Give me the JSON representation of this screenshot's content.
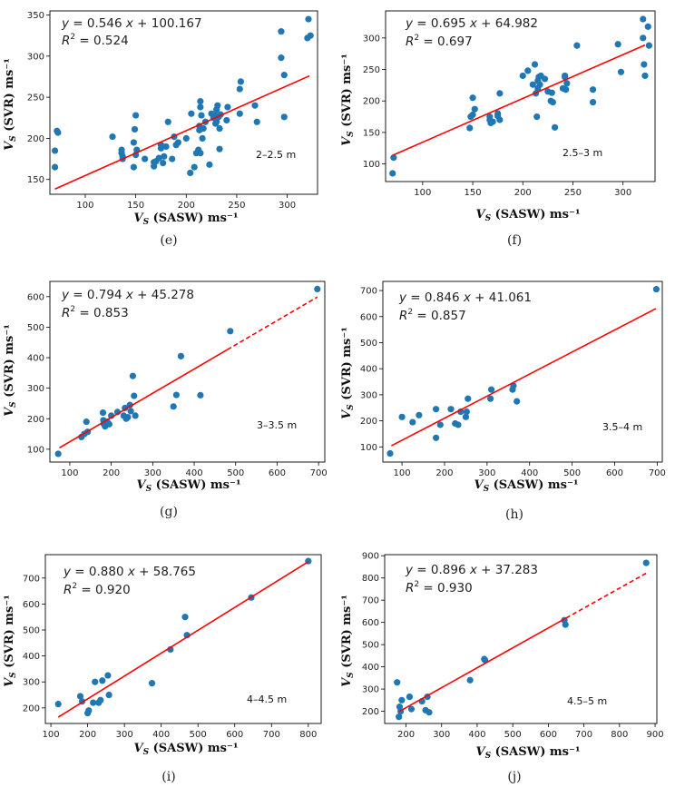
{
  "chart_data": [
    {
      "type": "scatter",
      "caption": "(e)",
      "equation": "y = 0.546 x + 100.167",
      "r2": "R² = 0.524",
      "depth_range": "2–2.5 m",
      "xlabel": "VS (SASW) ms⁻¹",
      "ylabel": "VS (SVR) ms⁻¹",
      "xlim": [
        65,
        330
      ],
      "ylim": [
        132,
        355
      ],
      "xticks": [
        100,
        150,
        200,
        250,
        300
      ],
      "yticks": [
        150,
        200,
        250,
        300,
        350
      ],
      "fit": {
        "slope": 0.546,
        "intercept": 100.167,
        "x_start": 70,
        "x_end": 322,
        "dashed_from": null
      },
      "x": [
        70,
        70,
        72,
        73,
        127,
        136,
        136,
        137,
        137,
        148,
        148,
        149,
        150,
        150,
        151,
        159,
        168,
        168,
        170,
        173,
        175,
        175,
        177,
        178,
        180,
        182,
        186,
        188,
        190,
        192,
        200,
        204,
        205,
        208,
        210,
        212,
        213,
        213,
        214,
        214,
        214,
        215,
        216,
        217,
        219,
        223,
        225,
        227,
        229,
        229,
        230,
        230,
        231,
        232,
        233,
        233,
        234,
        240,
        241,
        253,
        253,
        254,
        268,
        270,
        294,
        294,
        297,
        297,
        320,
        321,
        323
      ],
      "y": [
        185,
        165,
        209,
        207,
        202,
        186,
        182,
        178,
        175,
        165,
        195,
        211,
        228,
        180,
        186,
        175,
        171,
        166,
        172,
        176,
        192,
        188,
        170,
        178,
        190,
        220,
        175,
        202,
        192,
        195,
        200,
        158,
        230,
        165,
        182,
        186,
        210,
        215,
        245,
        238,
        182,
        228,
        200,
        212,
        220,
        168,
        230,
        225,
        218,
        228,
        235,
        220,
        240,
        226,
        212,
        187,
        229,
        222,
        238,
        230,
        260,
        269,
        240,
        220,
        330,
        298,
        277,
        226,
        322,
        345,
        325
      ]
    },
    {
      "type": "scatter",
      "caption": "(f)",
      "equation": "y = 0.695 x + 64.982",
      "r2": "R² = 0.697",
      "depth_range": "2.5–3 m",
      "xlabel": "VS (SASW) ms⁻¹",
      "ylabel": "VS (SVR) ms⁻¹",
      "xlim": [
        63,
        332
      ],
      "ylim": [
        72,
        343
      ],
      "xticks": [
        100,
        150,
        200,
        250,
        300
      ],
      "yticks": [
        100,
        150,
        200,
        250,
        300
      ],
      "fit": {
        "slope": 0.695,
        "intercept": 64.982,
        "x_start": 70,
        "x_end": 322,
        "dashed_from": null
      },
      "x": [
        70,
        71,
        147,
        148,
        150,
        150,
        152,
        167,
        167,
        168,
        170,
        175,
        175,
        177,
        177,
        200,
        205,
        210,
        212,
        213,
        214,
        215,
        215,
        216,
        217,
        218,
        222,
        225,
        228,
        229,
        230,
        232,
        240,
        242,
        242,
        243,
        244,
        254,
        270,
        270,
        295,
        298,
        320,
        320,
        321,
        322,
        325,
        326
      ],
      "y": [
        85,
        110,
        157,
        175,
        178,
        205,
        187,
        170,
        175,
        165,
        167,
        180,
        176,
        170,
        212,
        240,
        248,
        226,
        258,
        212,
        175,
        232,
        220,
        238,
        226,
        240,
        235,
        215,
        200,
        213,
        198,
        158,
        220,
        240,
        238,
        218,
        228,
        288,
        218,
        198,
        290,
        246,
        330,
        300,
        258,
        240,
        318,
        288
      ]
    },
    {
      "type": "scatter",
      "caption": "(g)",
      "equation": "y = 0.794 x + 45.278",
      "r2": "R² = 0.853",
      "depth_range": "3–3.5 m",
      "xlabel": "VS (SASW) ms⁻¹",
      "ylabel": "VS (SVR) ms⁻¹",
      "xlim": [
        52,
        715
      ],
      "ylim": [
        58,
        650
      ],
      "xticks": [
        100,
        200,
        300,
        400,
        500,
        600,
        700
      ],
      "yticks": [
        100,
        200,
        300,
        400,
        500,
        600
      ],
      "fit": {
        "slope": 0.794,
        "intercept": 45.278,
        "x_start": 75,
        "x_end": 697,
        "dashed_from": 480
      },
      "x": [
        72,
        128,
        135,
        140,
        143,
        180,
        181,
        182,
        185,
        190,
        195,
        200,
        215,
        230,
        233,
        236,
        240,
        245,
        247,
        252,
        255,
        258,
        350,
        357,
        368,
        415,
        487,
        697
      ],
      "y": [
        85,
        140,
        150,
        190,
        157,
        220,
        195,
        183,
        175,
        190,
        182,
        210,
        222,
        210,
        235,
        200,
        205,
        245,
        225,
        340,
        275,
        210,
        240,
        278,
        405,
        277,
        487,
        625
      ]
    },
    {
      "type": "scatter",
      "caption": "(h)",
      "equation": "y = 0.846 x + 41.061",
      "r2": "R² = 0.857",
      "depth_range": "3.5–4 m",
      "xlabel": "VS (SASW) ms⁻¹",
      "ylabel": "VS (SVR) ms⁻¹",
      "xlim": [
        55,
        712
      ],
      "ylim": [
        42,
        735
      ],
      "xticks": [
        100,
        200,
        300,
        400,
        500,
        600,
        700
      ],
      "yticks": [
        100,
        200,
        300,
        400,
        500,
        600,
        700
      ],
      "fit": {
        "slope": 0.846,
        "intercept": 41.061,
        "x_start": 75,
        "x_end": 697,
        "dashed_from": null
      },
      "x": [
        72,
        100,
        125,
        140,
        180,
        180,
        190,
        215,
        225,
        232,
        238,
        250,
        252,
        255,
        308,
        310,
        360,
        362,
        370,
        698
      ],
      "y": [
        75,
        215,
        195,
        222,
        135,
        245,
        185,
        245,
        190,
        185,
        235,
        215,
        235,
        285,
        285,
        320,
        320,
        335,
        275,
        705
      ]
    },
    {
      "type": "scatter",
      "caption": "(i)",
      "equation": "y = 0.880 x + 58.765",
      "r2": "R² = 0.920",
      "depth_range": "4–4.5 m",
      "xlabel": "VS (SASW) ms⁻¹",
      "ylabel": "VS (SVR) ms⁻¹",
      "xlim": [
        85,
        835
      ],
      "ylim": [
        140,
        790
      ],
      "xticks": [
        100,
        200,
        300,
        400,
        500,
        600,
        700,
        800
      ],
      "yticks": [
        200,
        300,
        400,
        500,
        600,
        700
      ],
      "fit": {
        "slope": 0.88,
        "intercept": 58.765,
        "x_start": 120,
        "x_end": 800,
        "dashed_from": null
      },
      "x": [
        120,
        180,
        185,
        200,
        203,
        215,
        220,
        230,
        235,
        240,
        255,
        258,
        375,
        425,
        465,
        470,
        645,
        800
      ],
      "y": [
        215,
        245,
        225,
        180,
        190,
        220,
        300,
        220,
        230,
        305,
        325,
        250,
        295,
        425,
        550,
        480,
        625,
        765
      ]
    },
    {
      "type": "scatter",
      "caption": "(j)",
      "equation": "y = 0.896 x + 37.283",
      "r2": "R² = 0.930",
      "depth_range": "4.5–5 m",
      "xlabel": "VS (SASW) ms⁻¹",
      "ylabel": "VS (SVR) ms⁻¹",
      "xlim": [
        140,
        905
      ],
      "ylim": [
        145,
        905
      ],
      "xticks": [
        200,
        300,
        400,
        500,
        600,
        700,
        800,
        900
      ],
      "yticks": [
        200,
        300,
        400,
        500,
        600,
        700,
        800,
        900
      ],
      "fit": {
        "slope": 0.896,
        "intercept": 37.283,
        "x_start": 180,
        "x_end": 875,
        "dashed_from": 650
      },
      "x": [
        175,
        180,
        182,
        185,
        188,
        210,
        215,
        245,
        255,
        260,
        265,
        380,
        420,
        422,
        645,
        648,
        875
      ],
      "y": [
        330,
        175,
        220,
        200,
        250,
        265,
        210,
        245,
        205,
        265,
        195,
        340,
        435,
        430,
        610,
        590,
        868
      ]
    }
  ]
}
